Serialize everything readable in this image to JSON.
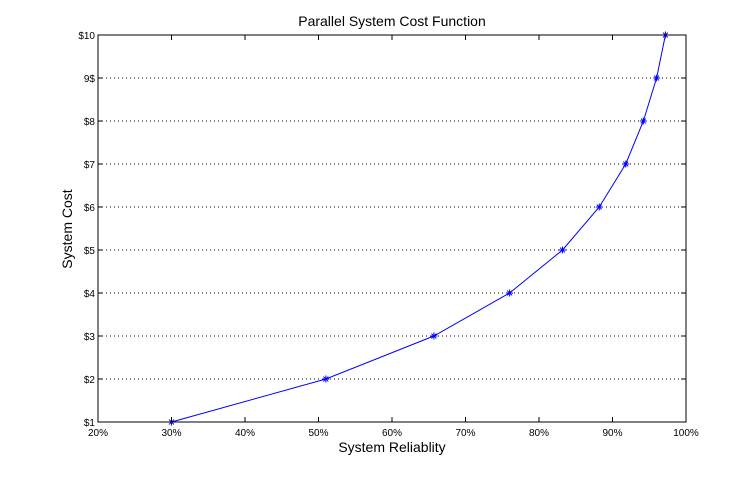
{
  "chart_data": {
    "type": "line",
    "title": "Parallel System Cost Function",
    "xlabel": "System Reliablity",
    "ylabel": "System Cost",
    "xlim": [
      20,
      100
    ],
    "ylim": [
      1,
      10
    ],
    "x_ticks": [
      20,
      30,
      40,
      50,
      60,
      70,
      80,
      90,
      100
    ],
    "x_tick_labels": [
      "20%",
      "30%",
      "40%",
      "50%",
      "60%",
      "70%",
      "80%",
      "90%",
      "100%"
    ],
    "y_ticks": [
      1,
      2,
      3,
      4,
      5,
      6,
      7,
      8,
      9,
      10
    ],
    "y_tick_labels": [
      "$1",
      "$2",
      "$3",
      "$4",
      "$5",
      "$6",
      "$7",
      "$8",
      "9$",
      "$10"
    ],
    "grid": "horizontal dotted",
    "series": [
      {
        "color": "#0000ff",
        "marker": "*",
        "x": [
          30.0,
          51.0,
          65.7,
          76.0,
          83.2,
          88.2,
          91.8,
          94.2,
          96.0,
          97.2
        ],
        "y": [
          1,
          2,
          3,
          4,
          5,
          6,
          7,
          8,
          9,
          10
        ]
      }
    ]
  }
}
